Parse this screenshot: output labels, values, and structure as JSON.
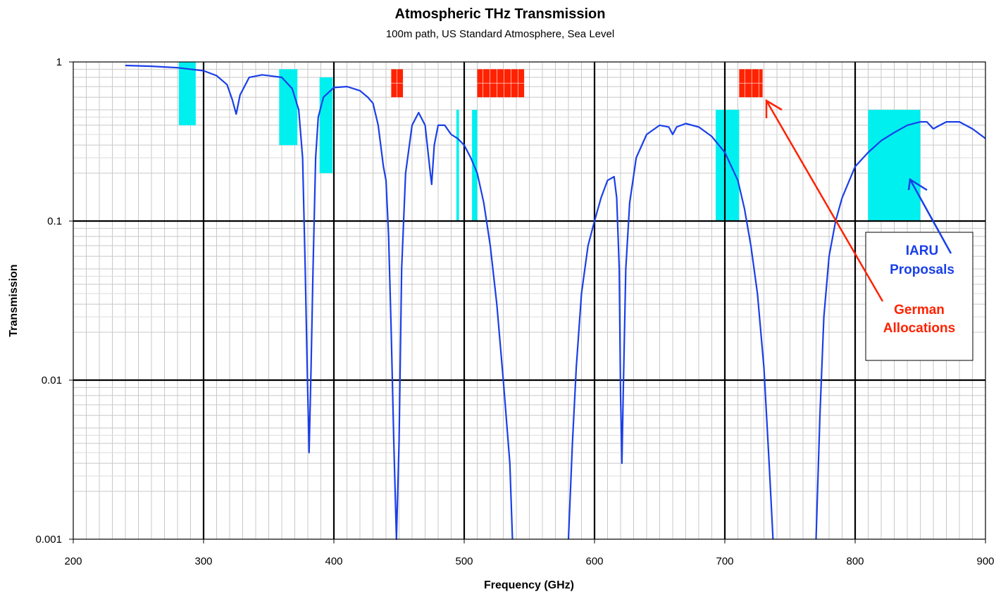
{
  "chart_data": {
    "type": "line",
    "title": "Atmospheric THz Transmission",
    "subtitle": "100m path, US Standard Atmosphere, Sea Level",
    "xlabel": "Frequency (GHz)",
    "ylabel": "Transmission",
    "xlim": [
      200,
      900
    ],
    "ylim": [
      0.001,
      1
    ],
    "yscale": "log",
    "grid": true,
    "x_ticks": [
      "200",
      "300",
      "400",
      "500",
      "600",
      "700",
      "800",
      "900"
    ],
    "y_ticks": [
      "1",
      "0.1",
      "0.01",
      "0.001"
    ],
    "colors": {
      "curve": "#1a3fe8",
      "iaru": "#00f0f0",
      "german": "#ff2200",
      "iaru_text": "#1a3fe8",
      "german_text": "#ff2200"
    },
    "series": [
      {
        "points": [
          [
            240,
            0.95
          ],
          [
            260,
            0.94
          ],
          [
            280,
            0.92
          ],
          [
            300,
            0.88
          ],
          [
            310,
            0.82
          ],
          [
            318,
            0.72
          ],
          [
            322,
            0.58
          ],
          [
            325,
            0.47
          ],
          [
            328,
            0.62
          ],
          [
            335,
            0.8
          ],
          [
            345,
            0.83
          ],
          [
            360,
            0.8
          ],
          [
            368,
            0.68
          ],
          [
            373,
            0.5
          ],
          [
            376,
            0.25
          ],
          [
            378,
            0.05
          ],
          [
            379.5,
            0.012
          ],
          [
            381,
            0.0035
          ],
          [
            382.5,
            0.012
          ],
          [
            384,
            0.05
          ],
          [
            386,
            0.25
          ],
          [
            388,
            0.45
          ],
          [
            392,
            0.6
          ],
          [
            400,
            0.69
          ],
          [
            410,
            0.7
          ],
          [
            420,
            0.66
          ],
          [
            426,
            0.6
          ],
          [
            430,
            0.55
          ],
          [
            434,
            0.4
          ],
          [
            438,
            0.22
          ],
          [
            440,
            0.18
          ],
          [
            442,
            0.08
          ],
          [
            444,
            0.02
          ],
          [
            446,
            0.004
          ],
          [
            448,
            0.001
          ],
          [
            450,
            0.004
          ],
          [
            452,
            0.05
          ],
          [
            455,
            0.2
          ],
          [
            460,
            0.4
          ],
          [
            465,
            0.48
          ],
          [
            470,
            0.4
          ],
          [
            474,
            0.2
          ],
          [
            475,
            0.17
          ],
          [
            477,
            0.3
          ],
          [
            480,
            0.4
          ],
          [
            485,
            0.4
          ],
          [
            490,
            0.35
          ],
          [
            495,
            0.33
          ],
          [
            500,
            0.3
          ],
          [
            505,
            0.25
          ],
          [
            510,
            0.2
          ],
          [
            515,
            0.13
          ],
          [
            520,
            0.07
          ],
          [
            525,
            0.03
          ],
          [
            530,
            0.01
          ],
          [
            535,
            0.003
          ],
          [
            537,
            0.001
          ]
        ]
      },
      {
        "points": [
          [
            580,
            0.001
          ],
          [
            583,
            0.004
          ],
          [
            586,
            0.012
          ],
          [
            590,
            0.035
          ],
          [
            595,
            0.07
          ],
          [
            600,
            0.1
          ],
          [
            605,
            0.14
          ],
          [
            610,
            0.18
          ],
          [
            615,
            0.19
          ],
          [
            617,
            0.14
          ],
          [
            619,
            0.05
          ],
          [
            620,
            0.008
          ],
          [
            621,
            0.003
          ],
          [
            622,
            0.008
          ],
          [
            624,
            0.05
          ],
          [
            627,
            0.13
          ],
          [
            632,
            0.25
          ],
          [
            640,
            0.35
          ],
          [
            650,
            0.4
          ],
          [
            657,
            0.39
          ],
          [
            660,
            0.35
          ],
          [
            663,
            0.39
          ],
          [
            670,
            0.41
          ],
          [
            680,
            0.39
          ],
          [
            690,
            0.34
          ],
          [
            700,
            0.27
          ],
          [
            710,
            0.18
          ],
          [
            715,
            0.12
          ],
          [
            720,
            0.07
          ],
          [
            725,
            0.035
          ],
          [
            730,
            0.012
          ],
          [
            734,
            0.003
          ],
          [
            737,
            0.001
          ]
        ]
      },
      {
        "points": [
          [
            770,
            0.001
          ],
          [
            773,
            0.006
          ],
          [
            776,
            0.025
          ],
          [
            780,
            0.06
          ],
          [
            785,
            0.1
          ],
          [
            790,
            0.14
          ],
          [
            800,
            0.22
          ],
          [
            810,
            0.27
          ],
          [
            820,
            0.32
          ],
          [
            830,
            0.36
          ],
          [
            840,
            0.4
          ],
          [
            850,
            0.42
          ],
          [
            855,
            0.42
          ],
          [
            860,
            0.38
          ],
          [
            865,
            0.4
          ],
          [
            870,
            0.42
          ],
          [
            880,
            0.42
          ],
          [
            890,
            0.38
          ],
          [
            900,
            0.33
          ]
        ]
      }
    ],
    "iaru_bands": [
      {
        "x": [
          281,
          294
        ],
        "y": [
          0.4,
          1.0
        ]
      },
      {
        "x": [
          358,
          372
        ],
        "y": [
          0.3,
          0.9
        ]
      },
      {
        "x": [
          389,
          399
        ],
        "y": [
          0.2,
          0.8
        ]
      },
      {
        "x": [
          494,
          496
        ],
        "y": [
          0.1,
          0.5
        ]
      },
      {
        "x": [
          506,
          510
        ],
        "y": [
          0.1,
          0.5
        ]
      },
      {
        "x": [
          693,
          711
        ],
        "y": [
          0.1,
          0.5
        ]
      },
      {
        "x": [
          810,
          850
        ],
        "y": [
          0.1,
          0.5
        ]
      }
    ],
    "german_bands": [
      {
        "x": [
          444,
          453
        ],
        "y": [
          0.6,
          0.9
        ]
      },
      {
        "x": [
          510,
          546
        ],
        "y": [
          0.6,
          0.9
        ]
      },
      {
        "x": [
          711,
          729
        ],
        "y": [
          0.6,
          0.9
        ]
      }
    ],
    "annotations": {
      "iaru": [
        "IARU",
        "Proposals"
      ],
      "german": [
        "German",
        "Allocations"
      ]
    }
  }
}
